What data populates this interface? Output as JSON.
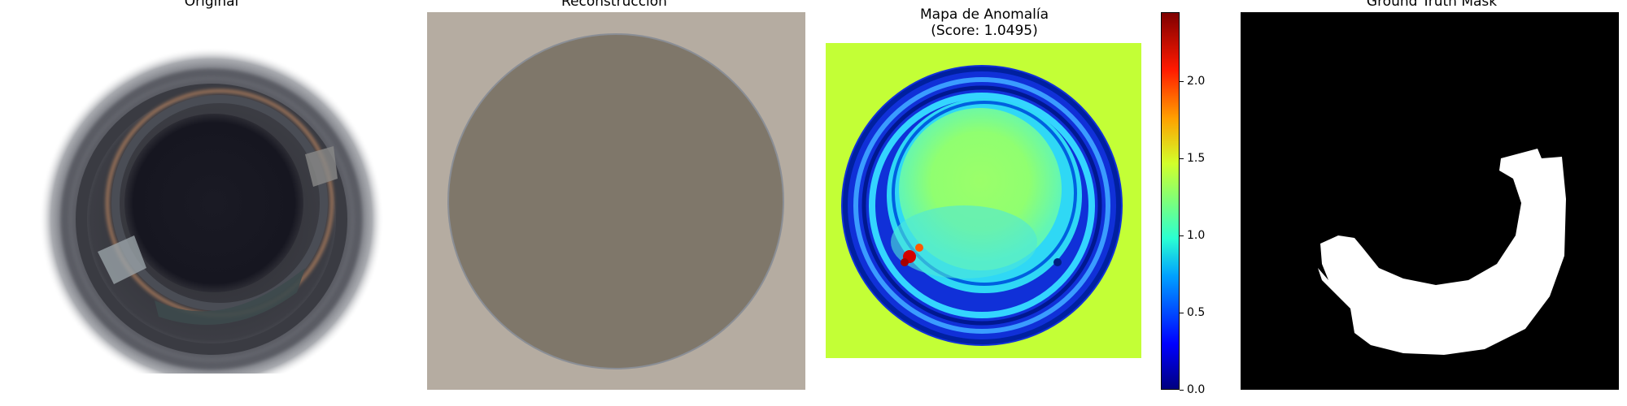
{
  "panels": {
    "original": {
      "title": "Original"
    },
    "reconstruction": {
      "title": "Reconstrucción"
    },
    "anomaly_map": {
      "title_line1": "Mapa de Anomalía",
      "title_line2": "(Score: 1.0495)"
    },
    "ground_truth": {
      "title": "Ground Truth Mask"
    }
  },
  "colorbar": {
    "ticks": [
      "0.0",
      "0.5",
      "1.0",
      "1.5",
      "2.0"
    ],
    "tick_values": [
      0.0,
      0.5,
      1.0,
      1.5,
      2.0
    ],
    "range": [
      0.0,
      2.45
    ],
    "colormap": "jet"
  },
  "colors": {
    "recon_background": "#b5aca1",
    "recon_disk": "#7f776a",
    "anomaly_background": "#c3ff36",
    "mask_background": "#000000",
    "mask_foreground": "#ffffff"
  }
}
